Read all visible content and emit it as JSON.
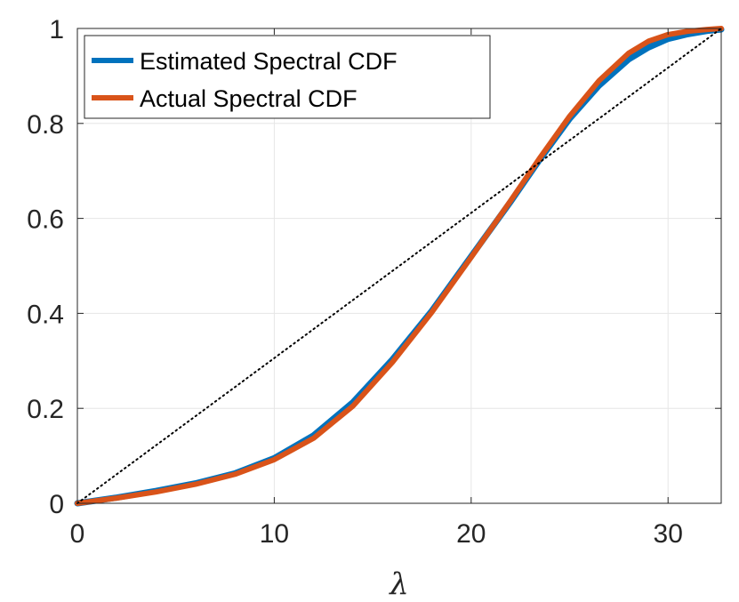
{
  "chart_data": {
    "type": "line",
    "title": "",
    "xlabel": "λ",
    "ylabel": "",
    "xlim": [
      0,
      32.7
    ],
    "ylim": [
      0,
      1
    ],
    "xticks": [
      0,
      10,
      20,
      30
    ],
    "yticks": [
      0,
      0.2,
      0.4,
      0.6,
      0.8,
      1
    ],
    "xtick_labels": [
      "0",
      "10",
      "20",
      "30"
    ],
    "ytick_labels": [
      "0",
      "0.2",
      "0.4",
      "0.6",
      "0.8",
      "1"
    ],
    "grid": true,
    "legend_position": "top-left",
    "series": [
      {
        "name": "Estimated Spectral CDF",
        "color": "#0072BD",
        "style": "solid",
        "x": [
          0,
          2,
          4,
          6,
          8,
          10,
          12,
          14,
          16,
          18,
          20,
          22,
          23.5,
          25,
          26.5,
          28,
          29,
          30,
          31,
          32,
          32.7
        ],
        "y": [
          0,
          0.012,
          0.026,
          0.042,
          0.063,
          0.095,
          0.143,
          0.213,
          0.303,
          0.405,
          0.52,
          0.635,
          0.725,
          0.81,
          0.88,
          0.935,
          0.96,
          0.978,
          0.988,
          0.995,
          0.998
        ]
      },
      {
        "name": "Actual Spectral CDF",
        "color": "#D95319",
        "style": "solid",
        "x": [
          0,
          2,
          4,
          6,
          8,
          10,
          12,
          14,
          16,
          18,
          20,
          22,
          23.5,
          25,
          26.5,
          28,
          29,
          30,
          31,
          32,
          32.7
        ],
        "y": [
          0,
          0.011,
          0.024,
          0.04,
          0.061,
          0.092,
          0.137,
          0.205,
          0.297,
          0.402,
          0.518,
          0.637,
          0.728,
          0.815,
          0.89,
          0.948,
          0.973,
          0.987,
          0.994,
          0.998,
          1.0
        ]
      },
      {
        "name": "reference-diagonal",
        "color": "#000000",
        "style": "dotted",
        "x": [
          0,
          32.7
        ],
        "y": [
          0,
          1
        ]
      }
    ]
  }
}
